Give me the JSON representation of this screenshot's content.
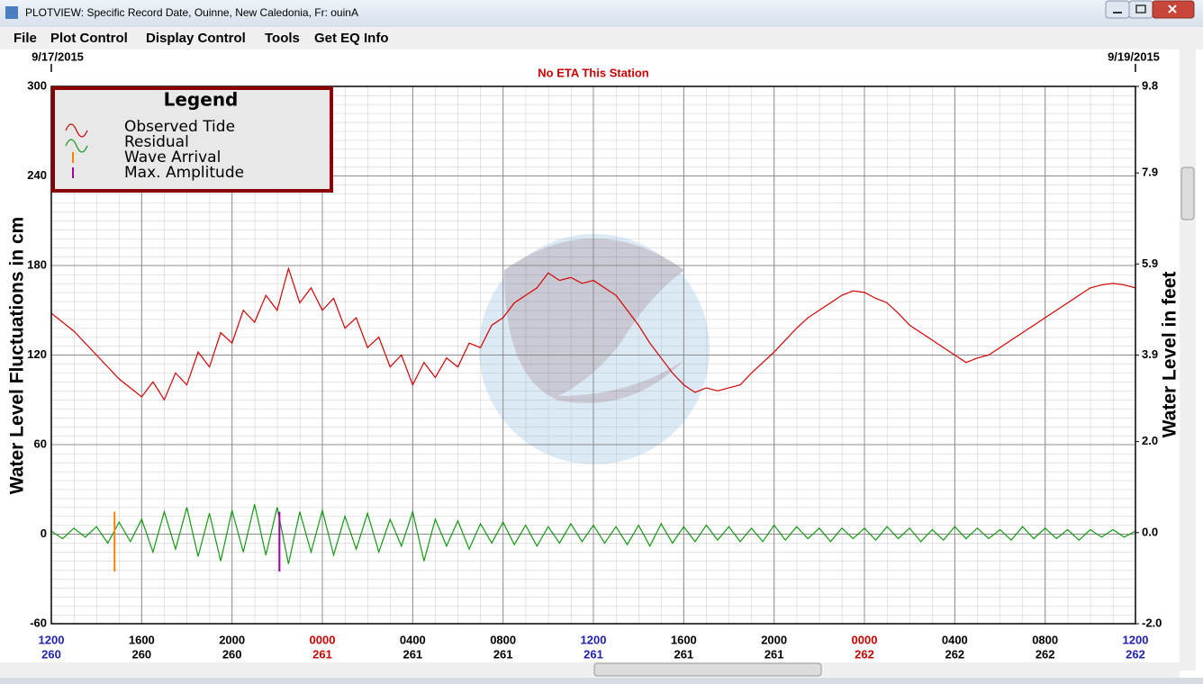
{
  "window": {
    "title": "PLOTVIEW: Specific Record Date, Ouinne, New Caledonia, Fr: ouinA"
  },
  "menu": [
    "File",
    "Plot Control",
    "Display Control",
    "Tools",
    "Get EQ Info"
  ],
  "chart_data": {
    "type": "line",
    "title": "No ETA This Station",
    "start_date": "9/17/2015",
    "end_date": "9/19/2015",
    "y_label": "Water Level Fluctuations in cm",
    "y2_label": "Water Level in feet",
    "legend_title": "Legend",
    "legend": "upper left",
    "grid": true,
    "xlim": [
      0,
      48
    ],
    "xticks": [
      {
        "value": 0,
        "label": "1200"
      },
      {
        "value": 4,
        "label": "1600"
      },
      {
        "value": 8,
        "label": "2000"
      },
      {
        "value": 12,
        "label": "0000"
      },
      {
        "value": 16,
        "label": "0400"
      },
      {
        "value": 20,
        "label": "0800"
      },
      {
        "value": 24,
        "label": "1200"
      },
      {
        "value": 28,
        "label": "1600"
      },
      {
        "value": 32,
        "label": "2000"
      },
      {
        "value": 36,
        "label": "0000"
      },
      {
        "value": 40,
        "label": "0400"
      },
      {
        "value": 44,
        "label": "0800"
      },
      {
        "value": 48,
        "label": "1200"
      }
    ],
    "xtick_days": [
      "260",
      "260",
      "260",
      "261",
      "261",
      "261",
      "261",
      "261",
      "261",
      "262",
      "262",
      "262",
      "262"
    ],
    "xtick_colors": [
      "#1f1fb0",
      "#000000",
      "#000000",
      "#cc0000",
      "#000000",
      "#000000",
      "#1f1fb0",
      "#000000",
      "#000000",
      "#cc0000",
      "#000000",
      "#000000",
      "#1f1fb0"
    ],
    "ylim": [
      -60,
      300
    ],
    "yticks": [
      -60,
      0,
      60,
      120,
      180,
      240,
      300
    ],
    "y2lim": [
      -2.0,
      9.8
    ],
    "y2ticks": [
      {
        "value": -2.0,
        "label": "-2.0"
      },
      {
        "value": 0,
        "label": "0.0"
      },
      {
        "value": 2,
        "label": "2.0"
      },
      3.9,
      5.9,
      7.9,
      9.8
    ],
    "x": [
      0,
      0.5,
      1,
      1.5,
      2,
      2.5,
      3,
      3.5,
      4,
      4.5,
      5,
      5.5,
      6,
      6.5,
      7,
      7.5,
      8,
      8.5,
      9,
      9.5,
      10,
      10.5,
      11,
      11.5,
      12,
      12.5,
      13,
      13.5,
      14,
      14.5,
      15,
      15.5,
      16,
      16.5,
      17,
      17.5,
      18,
      18.5,
      19,
      19.5,
      20,
      20.5,
      21,
      21.5,
      22,
      22.5,
      23,
      23.5,
      24,
      24.5,
      25,
      25.5,
      26,
      26.5,
      27,
      27.5,
      28,
      28.5,
      29,
      29.5,
      30,
      30.5,
      31,
      31.5,
      32,
      32.5,
      33,
      33.5,
      34,
      34.5,
      35,
      35.5,
      36,
      36.5,
      37,
      37.5,
      38,
      38.5,
      39,
      39.5,
      40,
      40.5,
      41,
      41.5,
      42,
      42.5,
      43,
      43.5,
      44,
      44.5,
      45,
      45.5,
      46,
      46.5,
      47,
      47.5,
      48
    ],
    "series": [
      {
        "name": "Observed Tide",
        "color": "#d40000",
        "values": [
          148,
          142,
          136,
          128,
          120,
          112,
          104,
          98,
          92,
          102,
          90,
          108,
          100,
          122,
          112,
          135,
          128,
          150,
          142,
          160,
          150,
          178,
          155,
          165,
          150,
          158,
          138,
          145,
          125,
          132,
          112,
          120,
          100,
          115,
          105,
          118,
          112,
          128,
          125,
          140,
          145,
          155,
          160,
          165,
          175,
          170,
          172,
          168,
          170,
          165,
          160,
          150,
          140,
          128,
          118,
          108,
          100,
          95,
          98,
          96,
          98,
          100,
          108,
          115,
          122,
          130,
          138,
          145,
          150,
          155,
          160,
          163,
          162,
          158,
          155,
          148,
          140,
          135,
          130,
          125,
          120,
          115,
          118,
          120,
          125,
          130,
          135,
          140,
          145,
          150,
          155,
          160,
          165,
          167,
          168,
          167,
          165
        ]
      },
      {
        "name": "Residual",
        "color": "#119911",
        "values": [
          2,
          -3,
          4,
          -2,
          5,
          -6,
          8,
          -5,
          10,
          -12,
          15,
          -10,
          18,
          -15,
          14,
          -18,
          16,
          -12,
          20,
          -14,
          18,
          -20,
          15,
          -12,
          16,
          -14,
          12,
          -10,
          14,
          -12,
          10,
          -8,
          15,
          -18,
          10,
          -8,
          9,
          -10,
          7,
          -6,
          8,
          -7,
          6,
          -8,
          5,
          -6,
          7,
          -5,
          6,
          -6,
          5,
          -7,
          6,
          -8,
          7,
          -6,
          5,
          -5,
          6,
          -4,
          5,
          -5,
          4,
          -5,
          6,
          -4,
          5,
          -3,
          4,
          -5,
          4,
          -3,
          4,
          -4,
          5,
          -3,
          4,
          -5,
          3,
          -4,
          5,
          -3,
          4,
          -3,
          3,
          -4,
          5,
          -3,
          4,
          -3,
          3,
          -4,
          3,
          -2,
          3,
          -2,
          2
        ]
      }
    ],
    "markers": [
      {
        "name": "Wave Arrival",
        "color": "#ff7f00",
        "x": 2.8,
        "ymin": -25,
        "ymax": 15
      },
      {
        "name": "Max. Amplitude",
        "color": "#a000a0",
        "x": 10.1,
        "ymin": -25,
        "ymax": 15
      }
    ]
  }
}
